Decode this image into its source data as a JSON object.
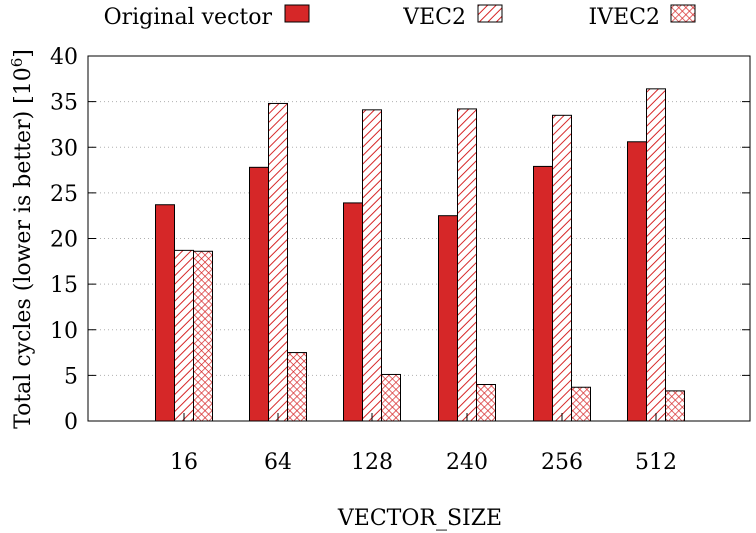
{
  "chart_data": {
    "type": "bar",
    "title": "",
    "xlabel": "VECTOR_SIZE",
    "ylabel": "Total cycles (lower is better) [10",
    "ylabel_exponent": "6",
    "ylabel_close": "]",
    "ylim": [
      0,
      40
    ],
    "yticks": [
      0,
      5,
      10,
      15,
      20,
      25,
      30,
      35,
      40
    ],
    "grid": "horizontal-dotted",
    "legend_position": "top",
    "categories": [
      "16",
      "64",
      "128",
      "240",
      "256",
      "512"
    ],
    "series": [
      {
        "name": "Original vector",
        "pattern": "solid",
        "values": [
          23.7,
          27.8,
          23.9,
          22.5,
          27.9,
          30.6
        ]
      },
      {
        "name": "VEC2",
        "pattern": "diagonal-hatch",
        "values": [
          18.7,
          34.8,
          34.1,
          34.2,
          33.5,
          36.4
        ]
      },
      {
        "name": "IVEC2",
        "pattern": "crosshatch",
        "values": [
          18.6,
          7.5,
          5.1,
          4.0,
          3.7,
          3.3
        ]
      }
    ]
  },
  "colors": {
    "bar": "#d62728",
    "border": "#000000",
    "grid": "#b0b0b0"
  }
}
